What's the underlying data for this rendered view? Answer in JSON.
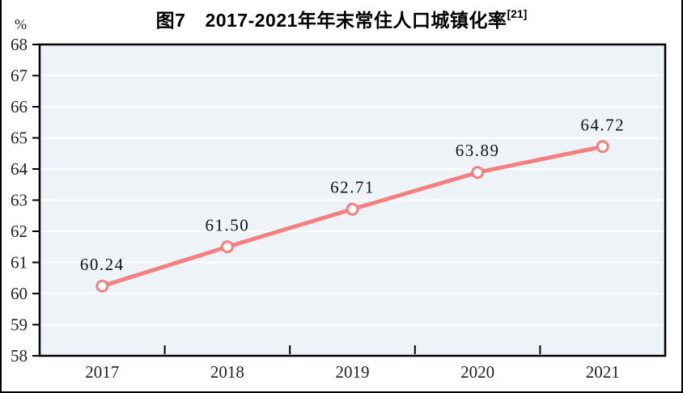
{
  "figure": {
    "title_prefix": "图7",
    "title_text": "2017-2021年年末常住人口城镇化率",
    "title_superscript": "[21]",
    "unit_label": "%"
  },
  "chart_data": {
    "type": "line",
    "title": "图7 2017-2021年年末常住人口城镇化率[21]",
    "ylabel": "%",
    "xlabel": "",
    "categories": [
      "2017",
      "2018",
      "2019",
      "2020",
      "2021"
    ],
    "series": [
      {
        "name": "年末常住人口城镇化率",
        "values": [
          60.24,
          61.5,
          62.71,
          63.89,
          64.72
        ],
        "labels": [
          "60.24",
          "61.50",
          "62.71",
          "63.89",
          "64.72"
        ]
      }
    ],
    "ylim": [
      58,
      68
    ],
    "yticks": [
      58,
      59,
      60,
      61,
      62,
      63,
      64,
      65,
      66,
      67,
      68
    ],
    "grid": true,
    "legend": false,
    "line_color": "#f47f7f",
    "marker_style": "open-circle",
    "marker_fill": "#ffffff",
    "plot_bg_color": "#eef3f8",
    "gridline_color": "#fdfefe",
    "axis_color": "#000000",
    "text_color": "#1f1f1f"
  }
}
